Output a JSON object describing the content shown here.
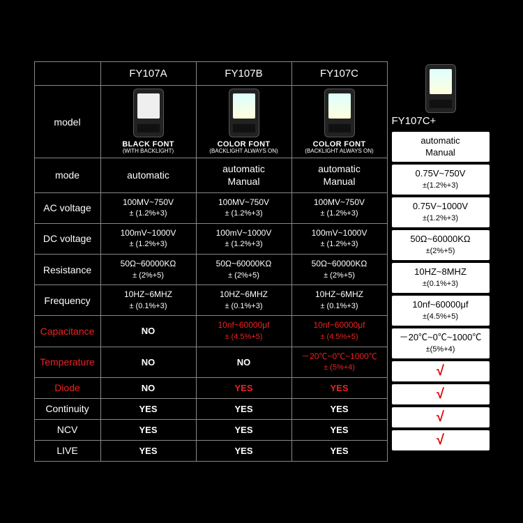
{
  "headers": [
    "FY107A",
    "FY107B",
    "FY107C"
  ],
  "rowLabels": {
    "model": "model",
    "mode": "mode",
    "ac": "AC voltage",
    "dc": "DC voltage",
    "res": "Resistance",
    "freq": "Frequency",
    "cap": "Capacitance",
    "temp": "Temperature",
    "diode": "Diode",
    "cont": "Continuity",
    "ncv": "NCV",
    "live": "LIVE"
  },
  "model": {
    "a": {
      "font": "BLACK FONT",
      "sub": "(WITH BACKLIGHT)"
    },
    "b": {
      "font": "COLOR FONT",
      "sub": "(BACKLIGHT ALWAYS ON)"
    },
    "c": {
      "font": "COLOR FONT",
      "sub": "(BACKLIGHT ALWAYS ON)"
    }
  },
  "mode": {
    "a": "automatic",
    "b1": "automatic",
    "b2": "Manual",
    "c1": "automatic",
    "c2": "Manual"
  },
  "ac": {
    "v": "100MV~750V",
    "t": "± (1.2%+3)"
  },
  "dc": {
    "v": "100mV~1000V",
    "t": "± (1.2%+3)"
  },
  "res": {
    "v": "50Ω~60000KΩ",
    "t": "± (2%+5)"
  },
  "freq": {
    "v": "10HZ~6MHZ",
    "t": "± (0.1%+3)"
  },
  "cap": {
    "no": "NO",
    "v": "10nf~60000μf",
    "t": "± (4.5%+5)"
  },
  "temp": {
    "no": "NO",
    "v": "－20℃~0℃~1000℃",
    "t": "± (5%+4)"
  },
  "diode": {
    "no": "NO",
    "yes": "YES"
  },
  "cont": "YES",
  "ncv": "YES",
  "live": "YES",
  "side": {
    "model": "FY107C+",
    "mode1": "automatic",
    "mode2": "Manual",
    "ac": {
      "v": "0.75V~750V",
      "t": "±(1.2%+3)"
    },
    "dc": {
      "v": "0.75V~1000V",
      "t": "±(1.2%+3)"
    },
    "res": {
      "v": "50Ω~60000KΩ",
      "t": "±(2%+5)"
    },
    "freq": {
      "v": "10HZ~8MHZ",
      "t": "±(0.1%+3)"
    },
    "cap": {
      "v": "10nf~60000μf",
      "t": "±(4.5%+5)"
    },
    "temp": {
      "v": "－20℃~0℃~1000℃",
      "t": "±(5%+4)"
    },
    "check": "√"
  }
}
